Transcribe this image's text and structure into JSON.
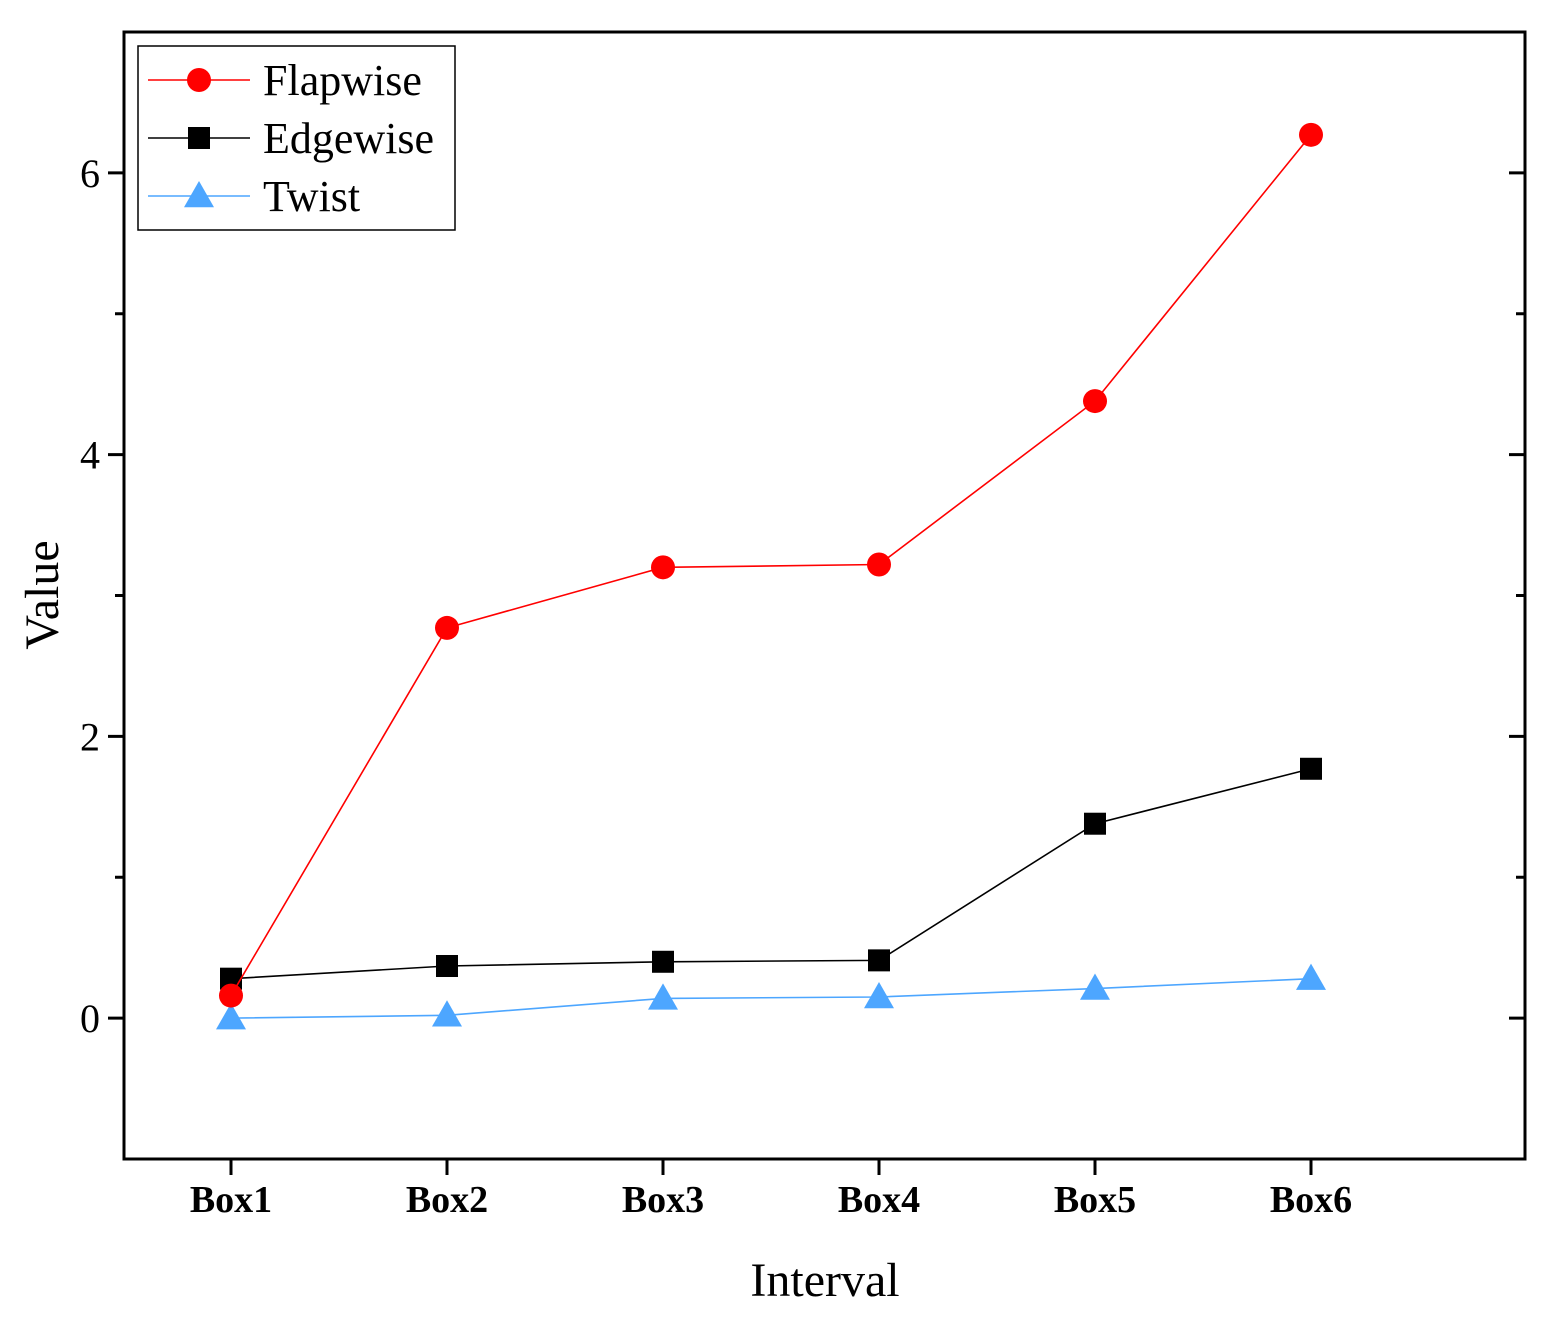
{
  "chart_data": {
    "type": "line",
    "title": "",
    "xlabel": "Interval",
    "ylabel": "Value",
    "categories": [
      "Box1",
      "Box2",
      "Box3",
      "Box4",
      "Box5",
      "Box6"
    ],
    "ylim": [
      -1,
      7
    ],
    "yticks": [
      0,
      2,
      4,
      6
    ],
    "yminor_ticks": [
      1,
      3,
      5
    ],
    "grid": false,
    "legend_position": "top-left",
    "series": [
      {
        "name": "Flapwise",
        "color": "#ff0000",
        "marker": "circle",
        "values": [
          0.16,
          2.77,
          3.2,
          3.22,
          4.38,
          6.27
        ]
      },
      {
        "name": "Edgewise",
        "color": "#000000",
        "marker": "square",
        "values": [
          0.28,
          0.37,
          0.4,
          0.41,
          1.38,
          1.77
        ]
      },
      {
        "name": "Twist",
        "color": "#4da6ff",
        "marker": "triangle",
        "values": [
          0.0,
          0.02,
          0.14,
          0.15,
          0.21,
          0.28
        ]
      }
    ]
  }
}
